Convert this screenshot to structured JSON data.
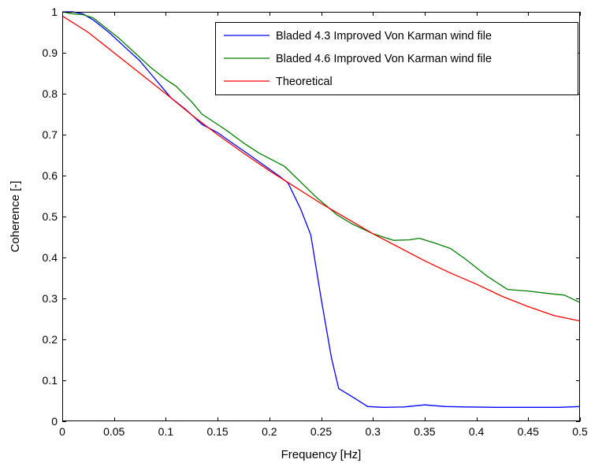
{
  "chart_data": {
    "type": "line",
    "xlabel": "Frequency [Hz]",
    "ylabel": "Coherence [-]",
    "xlim": [
      0,
      0.5
    ],
    "ylim": [
      0,
      1
    ],
    "xticks": [
      0,
      0.05,
      0.1,
      0.15,
      0.2,
      0.25,
      0.3,
      0.35,
      0.4,
      0.45,
      0.5
    ],
    "yticks": [
      0,
      0.1,
      0.2,
      0.3,
      0.4,
      0.5,
      0.6,
      0.7,
      0.8,
      0.9,
      1
    ],
    "xtick_labels": [
      "0",
      "0.05",
      "0.1",
      "0.15",
      "0.2",
      "0.25",
      "0.3",
      "0.35",
      "0.4",
      "0.45",
      "0.5"
    ],
    "ytick_labels": [
      "0",
      "0.1",
      "0.2",
      "0.3",
      "0.4",
      "0.5",
      "0.6",
      "0.7",
      "0.8",
      "0.9",
      "1"
    ],
    "grid": false,
    "legend_position": "top-right",
    "series": [
      {
        "name": "Bladed 4.3 Improved Von Karman wind file",
        "color": "#0000ff",
        "x": [
          0,
          0.01,
          0.02,
          0.03,
          0.045,
          0.06,
          0.075,
          0.085,
          0.095,
          0.105,
          0.12,
          0.135,
          0.15,
          0.165,
          0.18,
          0.195,
          0.21,
          0.218,
          0.23,
          0.24,
          0.25,
          0.26,
          0.267,
          0.28,
          0.295,
          0.31,
          0.33,
          0.35,
          0.37,
          0.39,
          0.42,
          0.45,
          0.48,
          0.5
        ],
        "y": [
          1.0,
          1.0,
          0.995,
          0.98,
          0.95,
          0.915,
          0.88,
          0.85,
          0.82,
          0.79,
          0.76,
          0.725,
          0.705,
          0.678,
          0.652,
          0.625,
          0.598,
          0.582,
          0.52,
          0.455,
          0.3,
          0.155,
          0.08,
          0.06,
          0.036,
          0.034,
          0.035,
          0.04,
          0.036,
          0.035,
          0.034,
          0.034,
          0.034,
          0.036
        ]
      },
      {
        "name": "Bladed 4.6 Improved Von Karman wind file",
        "color": "#008000",
        "x": [
          0,
          0.01,
          0.02,
          0.03,
          0.04,
          0.055,
          0.07,
          0.085,
          0.1,
          0.11,
          0.125,
          0.135,
          0.15,
          0.16,
          0.175,
          0.19,
          0.2,
          0.215,
          0.23,
          0.245,
          0.265,
          0.28,
          0.3,
          0.32,
          0.335,
          0.345,
          0.36,
          0.375,
          0.39,
          0.41,
          0.43,
          0.45,
          0.47,
          0.485,
          0.5
        ],
        "y": [
          1.0,
          0.995,
          0.993,
          0.985,
          0.965,
          0.935,
          0.9,
          0.865,
          0.835,
          0.818,
          0.78,
          0.75,
          0.725,
          0.708,
          0.68,
          0.655,
          0.642,
          0.622,
          0.585,
          0.548,
          0.505,
          0.482,
          0.458,
          0.442,
          0.443,
          0.447,
          0.435,
          0.422,
          0.395,
          0.355,
          0.322,
          0.318,
          0.312,
          0.308,
          0.29
        ]
      },
      {
        "name": "Theoretical",
        "color": "#ff0000",
        "x": [
          0,
          0.025,
          0.05,
          0.075,
          0.1,
          0.125,
          0.15,
          0.175,
          0.2,
          0.225,
          0.25,
          0.275,
          0.3,
          0.325,
          0.35,
          0.375,
          0.4,
          0.425,
          0.45,
          0.475,
          0.5
        ],
        "y": [
          0.99,
          0.95,
          0.9,
          0.85,
          0.8,
          0.748,
          0.7,
          0.655,
          0.612,
          0.572,
          0.532,
          0.495,
          0.458,
          0.425,
          0.392,
          0.362,
          0.335,
          0.305,
          0.28,
          0.258,
          0.245
        ]
      }
    ]
  }
}
